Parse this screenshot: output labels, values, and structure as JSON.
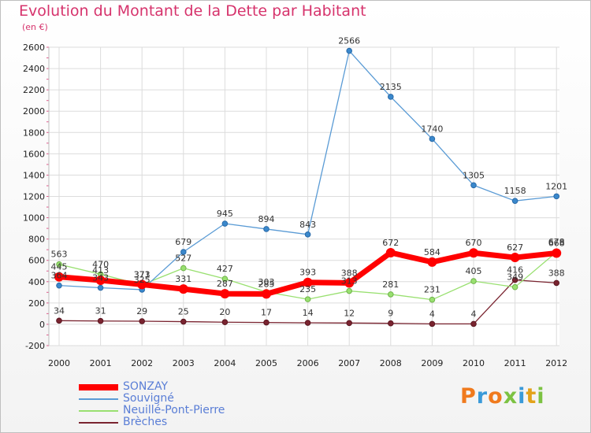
{
  "header": {
    "title": "Evolution du Montant de la Dette par Habitant",
    "unit": "(en €)"
  },
  "logo": {
    "text": "Proxiti",
    "letter_colors": [
      "#f07a1d",
      "#3a9ad9",
      "#f07a1d",
      "#7cc242",
      "#3a9ad9",
      "#e3a21a",
      "#7cc242"
    ]
  },
  "chart_data": {
    "type": "line",
    "title": "Evolution du Montant de la Dette par Habitant",
    "ylabel": "(en €)",
    "xlabel": "",
    "x": [
      "2000",
      "2001",
      "2002",
      "2003",
      "2004",
      "2005",
      "2006",
      "2007",
      "2008",
      "2009",
      "2010",
      "2011",
      "2012"
    ],
    "ylim": [
      -200,
      2600
    ],
    "yticks": [
      -200,
      0,
      200,
      400,
      600,
      800,
      1000,
      1200,
      1400,
      1600,
      1800,
      2000,
      2200,
      2400,
      2600
    ],
    "grid": true,
    "legend_position": "bottom-left",
    "series": [
      {
        "name": "SONZAY",
        "color": "#ff0000",
        "values": [
          445,
          413,
          373,
          331,
          287,
          285,
          393,
          388,
          672,
          584,
          670,
          627,
          668
        ]
      },
      {
        "name": "Souvigné",
        "color": "#5a9bd5",
        "values": [
          364,
          343,
          325,
          679,
          945,
          894,
          843,
          2566,
          2135,
          1740,
          1305,
          1158,
          1201
        ]
      },
      {
        "name": "Neuillé-Pont-Pierre",
        "color": "#99e070",
        "values": [
          563,
          470,
          371,
          527,
          427,
          303,
          235,
          313,
          281,
          231,
          405,
          349,
          678
        ]
      },
      {
        "name": "Brèches",
        "color": "#7a2430",
        "values": [
          34,
          31,
          29,
          25,
          20,
          17,
          14,
          12,
          9,
          4,
          4,
          416,
          388
        ]
      }
    ]
  }
}
